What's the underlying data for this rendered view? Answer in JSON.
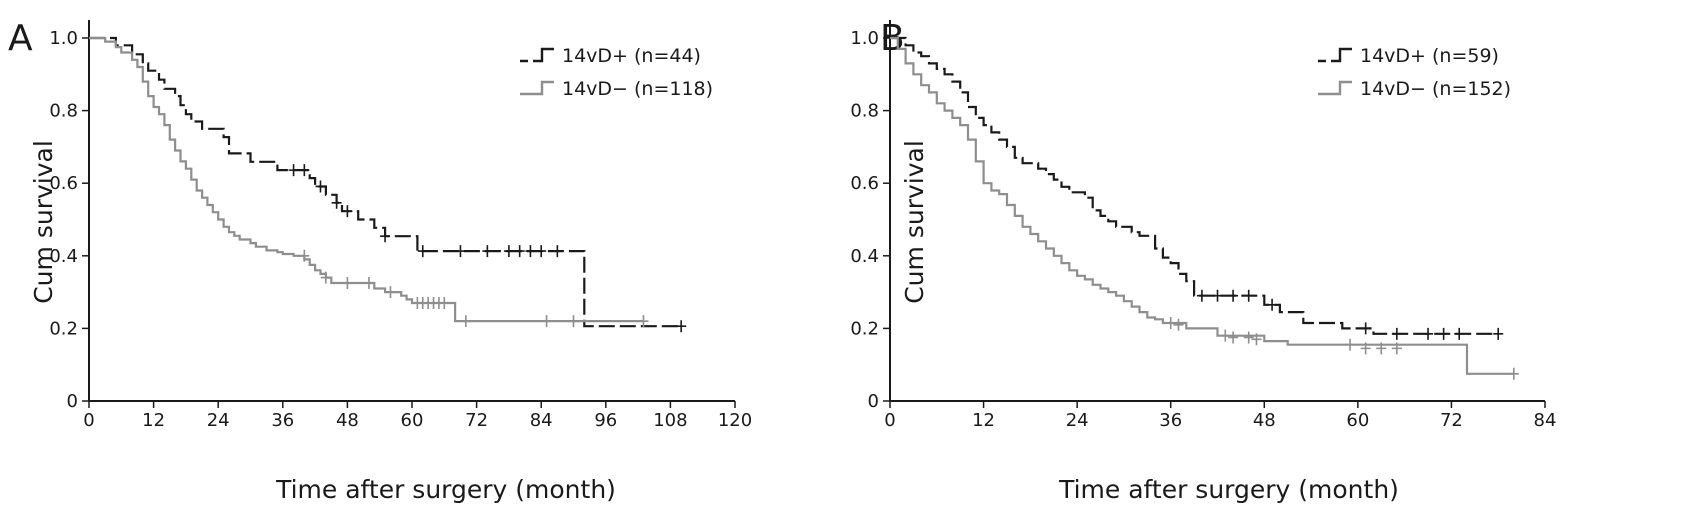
{
  "chart_data": [
    {
      "type": "line",
      "panel_label": "A",
      "xlabel": "Time after surgery  (month)",
      "ylabel": "Cum survival",
      "xlim": [
        0,
        120
      ],
      "ylim": [
        0,
        1.0
      ],
      "x_ticks": [
        "0",
        "12",
        "24",
        "36",
        "48",
        "60",
        "72",
        "84",
        "96",
        "108",
        "120"
      ],
      "y_ticks": [
        "0",
        "0.2",
        "0.4",
        "0.6",
        "0.8",
        "1.0"
      ],
      "legend_position": "top-right",
      "series": [
        {
          "name": "14vD+ (n=44)",
          "color": "#1a1a1a",
          "dashed": true,
          "step": [
            [
              0,
              1.0
            ],
            [
              5,
              0.98
            ],
            [
              8,
              0.955
            ],
            [
              10,
              0.93
            ],
            [
              11,
              0.91
            ],
            [
              13,
              0.885
            ],
            [
              14,
              0.86
            ],
            [
              16,
              0.84
            ],
            [
              17,
              0.815
            ],
            [
              18,
              0.79
            ],
            [
              19,
              0.77
            ],
            [
              21,
              0.75
            ],
            [
              25,
              0.727
            ],
            [
              26,
              0.682
            ],
            [
              30,
              0.659
            ],
            [
              35,
              0.636
            ],
            [
              41,
              0.614
            ],
            [
              42,
              0.591
            ],
            [
              44,
              0.568
            ],
            [
              46,
              0.546
            ],
            [
              47,
              0.523
            ],
            [
              50,
              0.5
            ],
            [
              53,
              0.477
            ],
            [
              55,
              0.454
            ],
            [
              59,
              0.454
            ],
            [
              61,
              0.413
            ],
            [
              91,
              0.413
            ],
            [
              92,
              0.206
            ],
            [
              110,
              0.206
            ]
          ],
          "censored": [
            [
              38,
              0.636
            ],
            [
              40,
              0.636
            ],
            [
              43,
              0.591
            ],
            [
              46,
              0.546
            ],
            [
              48,
              0.523
            ],
            [
              55,
              0.454
            ],
            [
              62,
              0.413
            ],
            [
              69,
              0.413
            ],
            [
              74,
              0.413
            ],
            [
              78,
              0.413
            ],
            [
              80,
              0.413
            ],
            [
              82,
              0.413
            ],
            [
              84,
              0.413
            ],
            [
              87,
              0.413
            ],
            [
              110,
              0.206
            ]
          ]
        },
        {
          "name": "14vD− (n=118)",
          "color": "#8e8e8e",
          "dashed": false,
          "step": [
            [
              0,
              1.0
            ],
            [
              3,
              0.99
            ],
            [
              5,
              0.975
            ],
            [
              6,
              0.96
            ],
            [
              8,
              0.94
            ],
            [
              9,
              0.92
            ],
            [
              10,
              0.88
            ],
            [
              11,
              0.84
            ],
            [
              12,
              0.81
            ],
            [
              13,
              0.79
            ],
            [
              14,
              0.76
            ],
            [
              15,
              0.72
            ],
            [
              16,
              0.69
            ],
            [
              17,
              0.66
            ],
            [
              18,
              0.64
            ],
            [
              19,
              0.61
            ],
            [
              20,
              0.58
            ],
            [
              21,
              0.56
            ],
            [
              22,
              0.54
            ],
            [
              23,
              0.52
            ],
            [
              24,
              0.5
            ],
            [
              25,
              0.48
            ],
            [
              26,
              0.465
            ],
            [
              27,
              0.455
            ],
            [
              28,
              0.445
            ],
            [
              30,
              0.435
            ],
            [
              31,
              0.425
            ],
            [
              33,
              0.415
            ],
            [
              35,
              0.41
            ],
            [
              36,
              0.405
            ],
            [
              38,
              0.4
            ],
            [
              40,
              0.39
            ],
            [
              41,
              0.375
            ],
            [
              42,
              0.36
            ],
            [
              43,
              0.35
            ],
            [
              44,
              0.34
            ],
            [
              45,
              0.325
            ],
            [
              53,
              0.31
            ],
            [
              55,
              0.3
            ],
            [
              58,
              0.29
            ],
            [
              59,
              0.28
            ],
            [
              60,
              0.27
            ],
            [
              68,
              0.22
            ],
            [
              103,
              0.22
            ]
          ],
          "censored": [
            [
              40,
              0.4
            ],
            [
              44,
              0.34
            ],
            [
              48,
              0.325
            ],
            [
              52,
              0.325
            ],
            [
              56,
              0.3
            ],
            [
              61,
              0.27
            ],
            [
              62,
              0.27
            ],
            [
              63,
              0.27
            ],
            [
              64,
              0.27
            ],
            [
              65,
              0.27
            ],
            [
              66,
              0.27
            ],
            [
              70,
              0.22
            ],
            [
              85,
              0.22
            ],
            [
              90,
              0.22
            ],
            [
              103,
              0.22
            ]
          ]
        }
      ]
    },
    {
      "type": "line",
      "panel_label": "B",
      "xlabel": "Time after surgery  (month)",
      "ylabel": "Cum survival",
      "xlim": [
        0,
        84
      ],
      "ylim": [
        0,
        1.0
      ],
      "x_ticks": [
        "0",
        "12",
        "24",
        "36",
        "48",
        "60",
        "72",
        "84"
      ],
      "y_ticks": [
        "0",
        "0.2",
        "0.4",
        "0.6",
        "0.8",
        "1.0"
      ],
      "legend_position": "top-right",
      "series": [
        {
          "name": "14vD+ (n=59)",
          "color": "#1a1a1a",
          "dashed": true,
          "step": [
            [
              0,
              1.0
            ],
            [
              2,
              0.98
            ],
            [
              3,
              0.96
            ],
            [
              4,
              0.95
            ],
            [
              5,
              0.93
            ],
            [
              6,
              0.915
            ],
            [
              7,
              0.9
            ],
            [
              8,
              0.88
            ],
            [
              9,
              0.85
            ],
            [
              10,
              0.81
            ],
            [
              11,
              0.78
            ],
            [
              12,
              0.76
            ],
            [
              13,
              0.74
            ],
            [
              14,
              0.72
            ],
            [
              15,
              0.7
            ],
            [
              16,
              0.67
            ],
            [
              17,
              0.655
            ],
            [
              19,
              0.64
            ],
            [
              20,
              0.625
            ],
            [
              21,
              0.61
            ],
            [
              22,
              0.59
            ],
            [
              23,
              0.575
            ],
            [
              25,
              0.56
            ],
            [
              26,
              0.525
            ],
            [
              27,
              0.51
            ],
            [
              28,
              0.495
            ],
            [
              29,
              0.48
            ],
            [
              31,
              0.465
            ],
            [
              32,
              0.455
            ],
            [
              34,
              0.42
            ],
            [
              35,
              0.395
            ],
            [
              36,
              0.38
            ],
            [
              37,
              0.35
            ],
            [
              38,
              0.33
            ],
            [
              39,
              0.29
            ],
            [
              48,
              0.265
            ],
            [
              50,
              0.245
            ],
            [
              53,
              0.215
            ],
            [
              58,
              0.2
            ],
            [
              62,
              0.185
            ],
            [
              78,
              0.185
            ]
          ],
          "censored": [
            [
              40,
              0.29
            ],
            [
              42,
              0.29
            ],
            [
              44,
              0.29
            ],
            [
              46,
              0.29
            ],
            [
              49,
              0.265
            ],
            [
              61,
              0.2
            ],
            [
              65,
              0.185
            ],
            [
              69,
              0.185
            ],
            [
              71,
              0.185
            ],
            [
              73,
              0.185
            ],
            [
              78,
              0.185
            ]
          ]
        },
        {
          "name": "14vD− (n=152)",
          "color": "#8e8e8e",
          "dashed": false,
          "step": [
            [
              0,
              1.0
            ],
            [
              1,
              0.97
            ],
            [
              2,
              0.93
            ],
            [
              3,
              0.9
            ],
            [
              4,
              0.87
            ],
            [
              5,
              0.85
            ],
            [
              6,
              0.82
            ],
            [
              7,
              0.8
            ],
            [
              8,
              0.78
            ],
            [
              9,
              0.76
            ],
            [
              10,
              0.72
            ],
            [
              11,
              0.66
            ],
            [
              12,
              0.6
            ],
            [
              13,
              0.58
            ],
            [
              14,
              0.57
            ],
            [
              15,
              0.54
            ],
            [
              16,
              0.51
            ],
            [
              17,
              0.48
            ],
            [
              18,
              0.46
            ],
            [
              19,
              0.44
            ],
            [
              20,
              0.42
            ],
            [
              21,
              0.4
            ],
            [
              22,
              0.38
            ],
            [
              23,
              0.36
            ],
            [
              24,
              0.345
            ],
            [
              25,
              0.335
            ],
            [
              26,
              0.32
            ],
            [
              27,
              0.31
            ],
            [
              28,
              0.3
            ],
            [
              29,
              0.29
            ],
            [
              30,
              0.275
            ],
            [
              31,
              0.26
            ],
            [
              32,
              0.245
            ],
            [
              33,
              0.23
            ],
            [
              34,
              0.225
            ],
            [
              35,
              0.215
            ],
            [
              38,
              0.2
            ],
            [
              42,
              0.18
            ],
            [
              48,
              0.165
            ],
            [
              51,
              0.155
            ],
            [
              74,
              0.075
            ],
            [
              80,
              0.075
            ]
          ],
          "censored": [
            [
              36,
              0.215
            ],
            [
              37,
              0.21
            ],
            [
              43,
              0.18
            ],
            [
              44,
              0.175
            ],
            [
              46,
              0.175
            ],
            [
              47,
              0.17
            ],
            [
              59,
              0.155
            ],
            [
              61,
              0.145
            ],
            [
              63,
              0.145
            ],
            [
              65,
              0.145
            ],
            [
              80,
              0.075
            ]
          ]
        }
      ]
    }
  ]
}
